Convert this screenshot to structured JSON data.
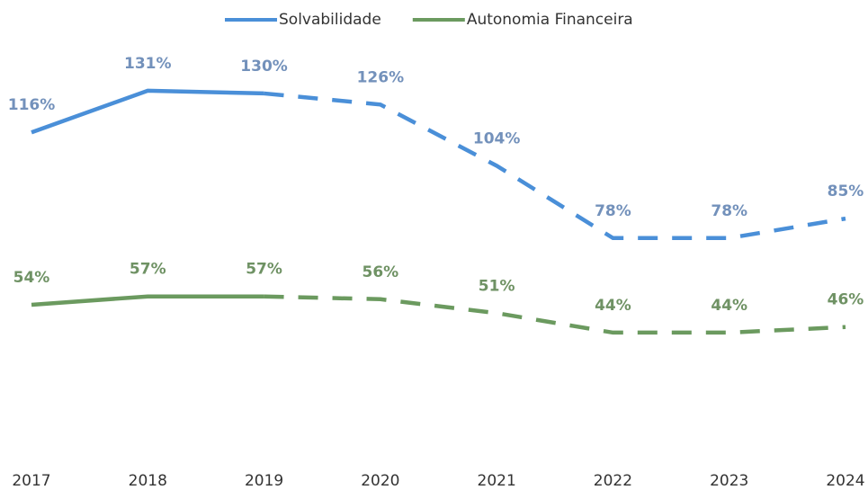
{
  "chart_data": {
    "type": "line",
    "categories": [
      "2017",
      "2018",
      "2019",
      "2020",
      "2021",
      "2022",
      "2023",
      "2024"
    ],
    "dashed_from": "2019",
    "ylim": [
      0,
      140
    ],
    "series": [
      {
        "name": "Solvabilidade",
        "color": "#4a8fd8",
        "label_color": "#7391bb",
        "values": [
          116,
          131,
          130,
          126,
          104,
          78,
          78,
          85
        ],
        "value_labels": [
          "116%",
          "131%",
          "130%",
          "126%",
          "104%",
          "78%",
          "78%",
          "85%"
        ]
      },
      {
        "name": "Autonomia Financeira",
        "color": "#6b9a5f",
        "label_color": "#6f9264",
        "values": [
          54,
          57,
          57,
          56,
          51,
          44,
          44,
          46
        ],
        "value_labels": [
          "54%",
          "57%",
          "57%",
          "56%",
          "51%",
          "44%",
          "44%",
          "46%"
        ]
      }
    ],
    "legend": "top"
  }
}
